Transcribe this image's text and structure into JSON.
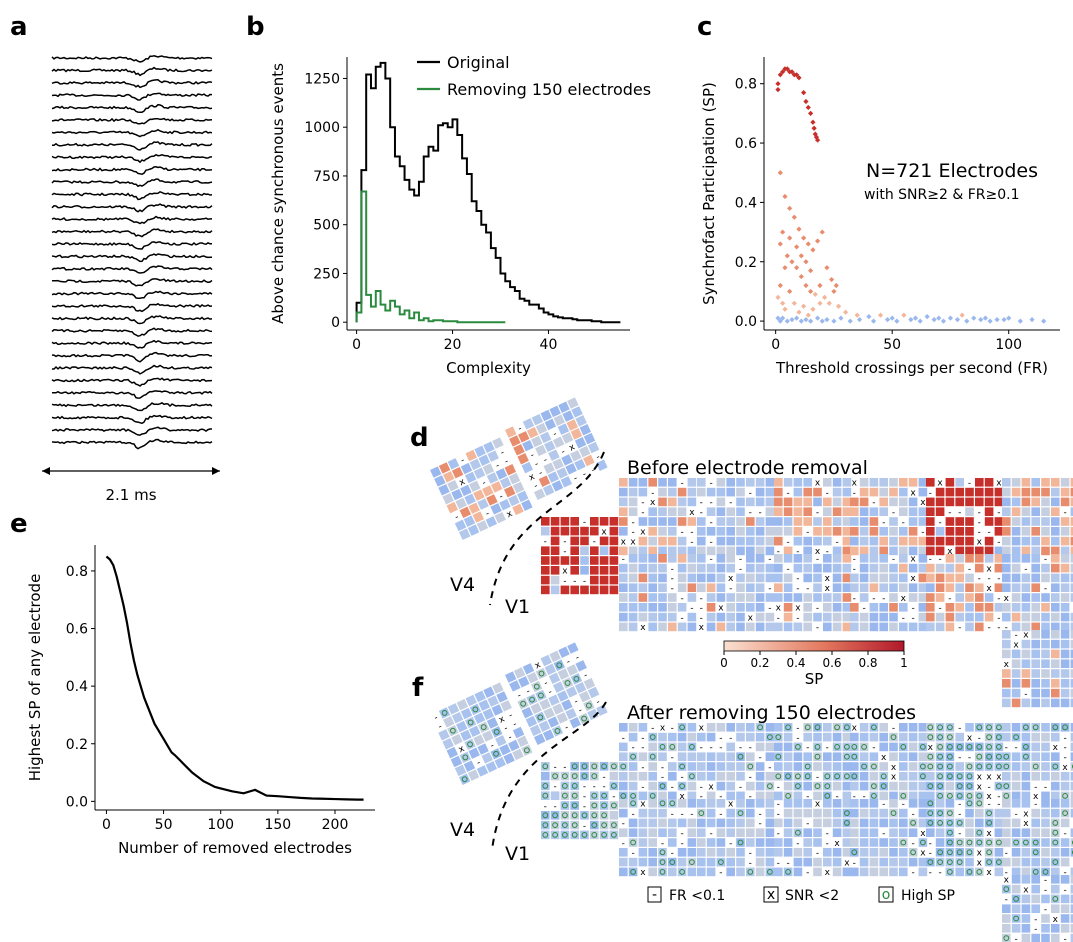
{
  "panel_labels": {
    "a": "a",
    "b": "b",
    "c": "c",
    "d": "d",
    "e": "e",
    "f": "f"
  },
  "panel_a": {
    "scale_label": "2.1 ms",
    "n_traces": 32
  },
  "chart_data": [
    {
      "id": "b",
      "type": "line",
      "xlabel": "Complexity",
      "ylabel": "Above chance synchronous events",
      "xlim": [
        -2,
        57
      ],
      "ylim": [
        -40,
        1360
      ],
      "xticks": [
        0,
        20,
        40
      ],
      "yticks": [
        0,
        250,
        500,
        750,
        1000,
        1250
      ],
      "legend_position": "top-right",
      "series": [
        {
          "name": "Original",
          "color": "#000000",
          "step": true,
          "x": [
            0,
            1,
            2,
            3,
            4,
            5,
            6,
            7,
            8,
            9,
            10,
            11,
            12,
            13,
            14,
            15,
            16,
            17,
            18,
            19,
            20,
            21,
            22,
            23,
            24,
            25,
            26,
            27,
            28,
            29,
            30,
            31,
            32,
            33,
            34,
            35,
            36,
            37,
            38,
            39,
            40,
            41,
            42,
            43,
            44,
            45,
            46,
            47,
            48,
            49,
            50,
            51,
            52,
            53,
            54
          ],
          "y": [
            100,
            780,
            1270,
            1200,
            1310,
            1330,
            1250,
            1000,
            850,
            800,
            730,
            680,
            650,
            720,
            850,
            900,
            880,
            1010,
            1020,
            1000,
            1040,
            960,
            840,
            760,
            620,
            570,
            500,
            460,
            380,
            330,
            250,
            210,
            180,
            160,
            120,
            110,
            90,
            90,
            70,
            50,
            40,
            30,
            25,
            20,
            20,
            15,
            10,
            10,
            10,
            5,
            5,
            0,
            0,
            0,
            0
          ]
        },
        {
          "name": "Removing 150 electrodes",
          "color": "#2a8a3e",
          "step": true,
          "x": [
            0,
            1,
            2,
            3,
            4,
            5,
            6,
            7,
            8,
            9,
            10,
            11,
            12,
            13,
            14,
            15,
            16,
            17,
            18,
            19,
            20,
            21,
            22,
            23,
            24,
            25,
            26,
            27,
            28,
            29,
            30
          ],
          "y": [
            50,
            670,
            140,
            80,
            160,
            90,
            60,
            110,
            80,
            40,
            60,
            20,
            50,
            10,
            20,
            5,
            10,
            10,
            5,
            5,
            5,
            0,
            0,
            0,
            0,
            0,
            0,
            0,
            0,
            0,
            0
          ]
        }
      ]
    },
    {
      "id": "c",
      "type": "scatter",
      "xlabel": "Threshold crossings per second (FR)",
      "ylabel": "Synchrofact Participation (SP)",
      "xlim": [
        -5,
        122
      ],
      "ylim": [
        -0.03,
        0.89
      ],
      "xticks": [
        0,
        50,
        100
      ],
      "yticks": [
        0.0,
        0.2,
        0.4,
        0.6,
        0.8
      ],
      "annotation": [
        "N=721 Electrodes",
        "with SNR≥2 & FR≥0.1"
      ],
      "points": [
        [
          1,
          0.8
        ],
        [
          2,
          0.83
        ],
        [
          3,
          0.84
        ],
        [
          4,
          0.85
        ],
        [
          5,
          0.85
        ],
        [
          6,
          0.84
        ],
        [
          7,
          0.84
        ],
        [
          8,
          0.83
        ],
        [
          9,
          0.83
        ],
        [
          10,
          0.82
        ],
        [
          12,
          0.77
        ],
        [
          13,
          0.74
        ],
        [
          14,
          0.72
        ],
        [
          15,
          0.7
        ],
        [
          16,
          0.67
        ],
        [
          16.5,
          0.65
        ],
        [
          17,
          0.63
        ],
        [
          17.5,
          0.62
        ],
        [
          18,
          0.61
        ],
        [
          1,
          0.78
        ],
        [
          2,
          0.5
        ],
        [
          4,
          0.42
        ],
        [
          6,
          0.38
        ],
        [
          8,
          0.35
        ],
        [
          3,
          0.3
        ],
        [
          10,
          0.31
        ],
        [
          12,
          0.28
        ],
        [
          14,
          0.26
        ],
        [
          16,
          0.24
        ],
        [
          18,
          0.27
        ],
        [
          20,
          0.3
        ],
        [
          5,
          0.22
        ],
        [
          7,
          0.2
        ],
        [
          9,
          0.18
        ],
        [
          11,
          0.15
        ],
        [
          13,
          0.12
        ],
        [
          15,
          0.1
        ],
        [
          17,
          0.09
        ],
        [
          19,
          0.12
        ],
        [
          21,
          0.08
        ],
        [
          23,
          0.06
        ],
        [
          25,
          0.1
        ],
        [
          27,
          0.05
        ],
        [
          30,
          0.03
        ],
        [
          2,
          0.12
        ],
        [
          1,
          0.08
        ],
        [
          3,
          0.06
        ],
        [
          4,
          0.04
        ],
        [
          6,
          0.1
        ],
        [
          8,
          0.06
        ],
        [
          10,
          0.03
        ],
        [
          12,
          0.05
        ],
        [
          14,
          0.02
        ],
        [
          16,
          0.04
        ],
        [
          35,
          0.02
        ],
        [
          40,
          0.015
        ],
        [
          45,
          0.02
        ],
        [
          50,
          0.01
        ],
        [
          55,
          0.02
        ],
        [
          60,
          0.01
        ],
        [
          65,
          0.015
        ],
        [
          70,
          0.01
        ],
        [
          75,
          0.01
        ],
        [
          80,
          0.02
        ],
        [
          85,
          0.01
        ],
        [
          90,
          0.01
        ],
        [
          95,
          0.005
        ],
        [
          100,
          0.01
        ],
        [
          105,
          0.0
        ],
        [
          110,
          0.005
        ],
        [
          115,
          0.0
        ],
        [
          1,
          0.01
        ],
        [
          2,
          0.0
        ],
        [
          3,
          0.01
        ],
        [
          5,
          0.0
        ],
        [
          7,
          0.005
        ],
        [
          9,
          0.01
        ],
        [
          11,
          0.0
        ],
        [
          13,
          0.005
        ],
        [
          15,
          0.0
        ],
        [
          18,
          0.01
        ],
        [
          20,
          0.0
        ],
        [
          22,
          0.005
        ],
        [
          25,
          0.0
        ],
        [
          28,
          0.01
        ],
        [
          32,
          0.0
        ],
        [
          36,
          0.005
        ],
        [
          42,
          0.0
        ],
        [
          48,
          0.005
        ],
        [
          52,
          0.0
        ],
        [
          58,
          0.005
        ],
        [
          62,
          0.0
        ],
        [
          68,
          0.005
        ],
        [
          72,
          0.0
        ],
        [
          78,
          0.005
        ],
        [
          82,
          0.0
        ],
        [
          88,
          0.005
        ],
        [
          92,
          0.0
        ],
        [
          98,
          0.005
        ],
        [
          19,
          0.06
        ],
        [
          22,
          0.18
        ],
        [
          24,
          0.14
        ],
        [
          26,
          0.12
        ],
        [
          9,
          0.25
        ],
        [
          11,
          0.22
        ],
        [
          6,
          0.28
        ],
        [
          4,
          0.18
        ],
        [
          2,
          0.26
        ],
        [
          13,
          0.2
        ],
        [
          15,
          0.17
        ]
      ]
    },
    {
      "id": "e",
      "type": "line",
      "xlabel": "Number of removed electrodes",
      "ylabel": "Highest SP of any electrode",
      "xlim": [
        -10,
        235
      ],
      "ylim": [
        -0.03,
        0.89
      ],
      "xticks": [
        0,
        50,
        100,
        150,
        200
      ],
      "yticks": [
        0.0,
        0.2,
        0.4,
        0.6,
        0.8
      ],
      "series": [
        {
          "name": "",
          "color": "#000000",
          "x": [
            0,
            3,
            6,
            9,
            12,
            15,
            18,
            21,
            24,
            27,
            30,
            33,
            36,
            39,
            42,
            45,
            48,
            51,
            54,
            57,
            60,
            65,
            70,
            75,
            80,
            85,
            90,
            95,
            100,
            110,
            120,
            130,
            140,
            150,
            160,
            170,
            180,
            190,
            200,
            210,
            220,
            225
          ],
          "y": [
            0.85,
            0.84,
            0.82,
            0.78,
            0.73,
            0.68,
            0.62,
            0.55,
            0.49,
            0.44,
            0.4,
            0.36,
            0.33,
            0.3,
            0.27,
            0.25,
            0.23,
            0.21,
            0.19,
            0.17,
            0.16,
            0.14,
            0.12,
            0.1,
            0.085,
            0.07,
            0.06,
            0.05,
            0.045,
            0.035,
            0.028,
            0.04,
            0.02,
            0.018,
            0.015,
            0.012,
            0.01,
            0.009,
            0.008,
            0.007,
            0.006,
            0.006
          ]
        }
      ]
    }
  ],
  "panel_d": {
    "title": "Before electrode removal"
  },
  "panel_f": {
    "title": "After removing 150 electrodes"
  },
  "area_labels": {
    "v4": "V4",
    "v1": "V1"
  },
  "colorbar": {
    "label": "SP",
    "ticks": [
      "0",
      "0.2",
      "0.4",
      "0.6",
      "0.8",
      "1"
    ],
    "colors": [
      "#fbe0d0",
      "#b2182b"
    ]
  },
  "legend_f": {
    "dash_label": "FR <0.1",
    "x_label": "SNR <2",
    "o_label": "High SP",
    "dash_symbol": "-",
    "x_symbol": "x",
    "o_symbol": "o"
  }
}
